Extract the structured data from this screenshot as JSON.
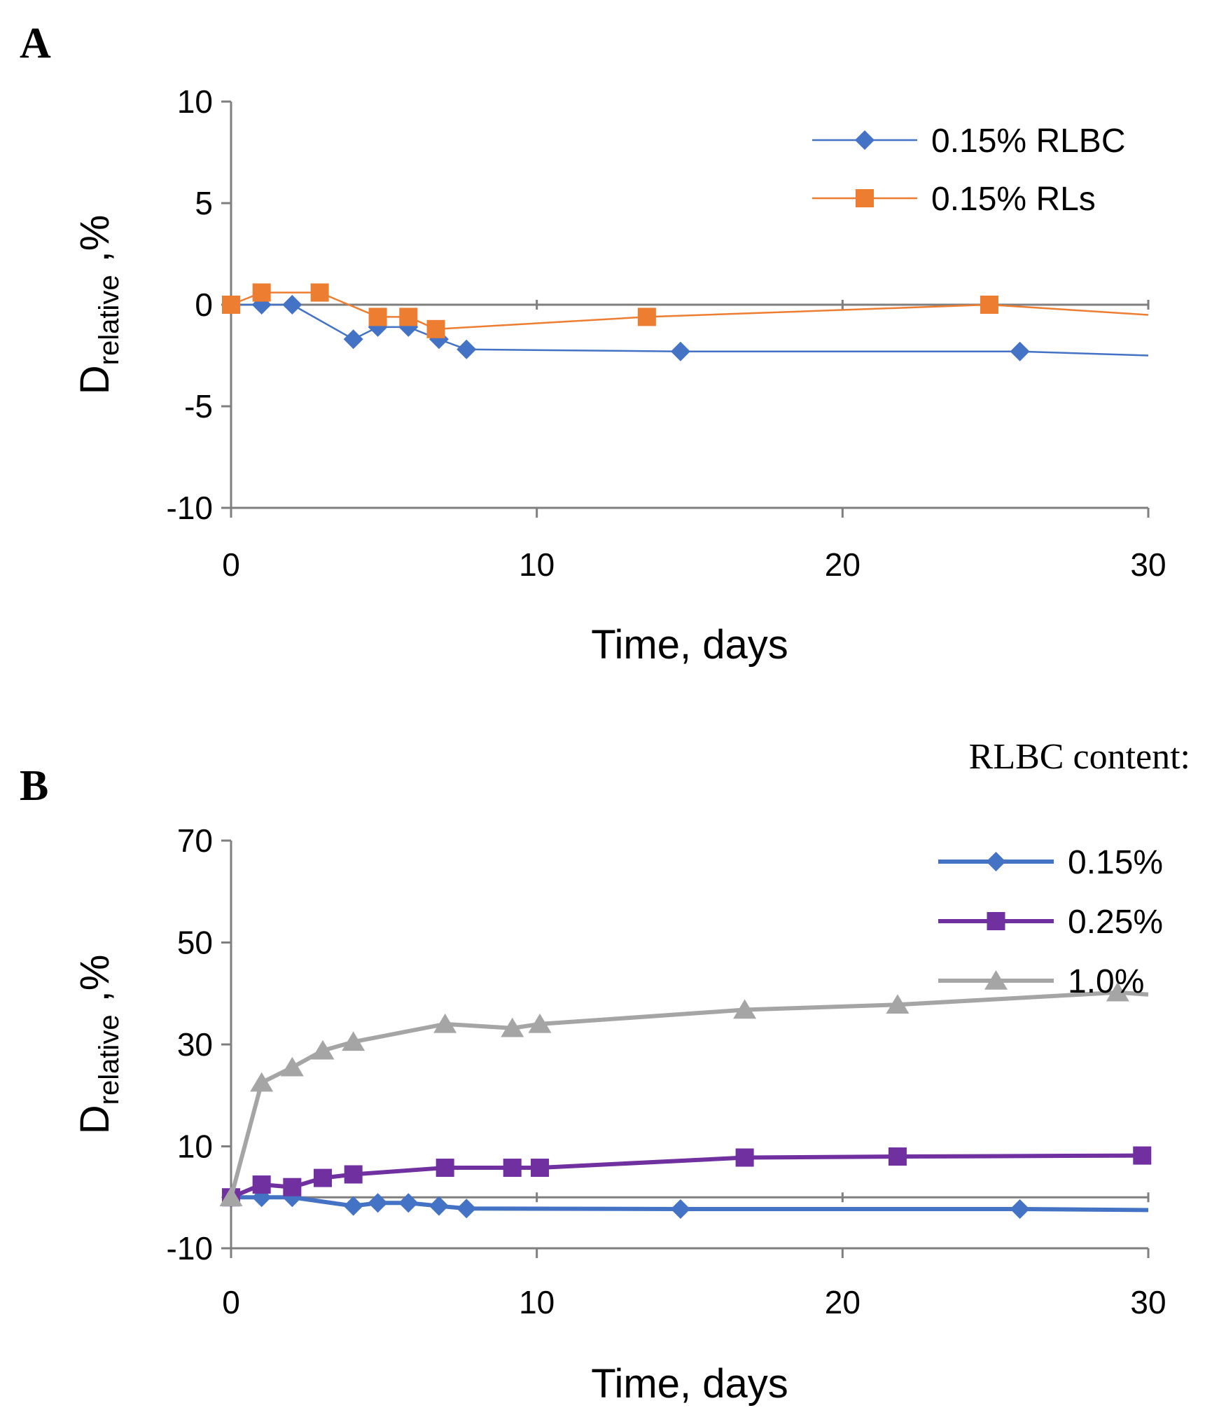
{
  "chart_data": [
    {
      "panel": "A",
      "type": "line",
      "title": "",
      "xlabel": "Time, days",
      "ylabel": {
        "main": "D",
        "subscript": "relative",
        "unit": ",%"
      },
      "xlim": [
        0,
        30
      ],
      "ylim": [
        -10,
        10
      ],
      "xticks": [
        0,
        10,
        20,
        30
      ],
      "yticks": [
        -10,
        -5,
        0,
        5,
        10
      ],
      "grid": false,
      "legend_position": "top-right",
      "series": [
        {
          "name": "0.15% RLBC",
          "color": "#4472C4",
          "marker": "diamond",
          "x": [
            0,
            1,
            2,
            4,
            4.8,
            5.8,
            6.8,
            7.7,
            14.7,
            25.8,
            30
          ],
          "y": [
            0,
            0,
            0,
            -1.7,
            -1.1,
            -1.1,
            -1.7,
            -2.2,
            -2.3,
            -2.3,
            -2.5
          ]
        },
        {
          "name": "0.15% RLs",
          "color": "#ED7D31",
          "marker": "square",
          "x": [
            0,
            1,
            2.9,
            4.8,
            5.8,
            6.7,
            13.6,
            24.8,
            30
          ],
          "y": [
            0,
            0.6,
            0.6,
            -0.6,
            -0.6,
            -1.2,
            -0.6,
            0,
            -0.5
          ]
        }
      ]
    },
    {
      "panel": "B",
      "type": "line",
      "title": "",
      "xlabel": "Time, days",
      "ylabel": {
        "main": "D",
        "subscript": "relative",
        "unit": ",%"
      },
      "xlim": [
        0,
        30
      ],
      "ylim": [
        -10,
        70
      ],
      "xticks": [
        0,
        10,
        20,
        30
      ],
      "yticks": [
        -10,
        10,
        30,
        50,
        70
      ],
      "grid": false,
      "legend_position": "top-right",
      "legend_title": "RLBC content:",
      "series": [
        {
          "name": "0.15%",
          "color": "#4472C4",
          "marker": "diamond",
          "x": [
            0,
            1,
            2,
            4,
            4.8,
            5.8,
            6.8,
            7.7,
            14.7,
            25.8,
            30
          ],
          "y": [
            0,
            0,
            0,
            -1.7,
            -1.1,
            -1.1,
            -1.7,
            -2.2,
            -2.3,
            -2.3,
            -2.5
          ]
        },
        {
          "name": "0.25%",
          "color": "#7030A0",
          "marker": "square",
          "x": [
            0,
            1,
            2,
            3,
            4,
            7,
            9.2,
            10.1,
            16.8,
            21.8,
            29.8
          ],
          "y": [
            0,
            2.5,
            2,
            3.8,
            4.5,
            5.8,
            5.8,
            5.8,
            7.8,
            8,
            8.2
          ]
        },
        {
          "name": "1.0%",
          "color": "#A5A5A5",
          "marker": "triangle",
          "x": [
            0,
            1,
            2,
            3,
            4,
            7,
            9.2,
            10.1,
            16.8,
            21.8,
            29,
            30
          ],
          "y": [
            0,
            22.5,
            25.5,
            28.8,
            30.5,
            34,
            33.2,
            34,
            36.8,
            37.8,
            40.2,
            39.8
          ]
        }
      ]
    }
  ]
}
